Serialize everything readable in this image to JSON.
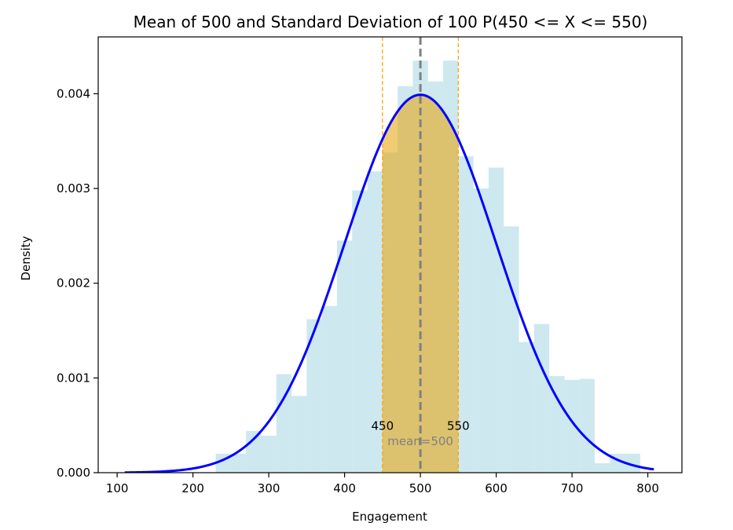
{
  "chart_data": {
    "type": "bar",
    "title": "Mean of 500 and Standard Deviation of 100 P(450 <= X <= 550)",
    "xlabel": "Engagement",
    "ylabel": "Density",
    "xlim": [
      75,
      845
    ],
    "ylim": [
      0,
      0.0046
    ],
    "x_ticks": [
      100,
      200,
      300,
      400,
      500,
      600,
      700,
      800
    ],
    "y_ticks": [
      0.0,
      0.001,
      0.002,
      0.003,
      0.004
    ],
    "y_tick_labels": [
      "0.000",
      "0.001",
      "0.002",
      "0.003",
      "0.004"
    ],
    "histogram": {
      "bin_width": 20,
      "color": "#add8e6",
      "bins": [
        {
          "x0": 110,
          "density": 0.0
        },
        {
          "x0": 130,
          "density": 0.0
        },
        {
          "x0": 150,
          "density": 0.0
        },
        {
          "x0": 170,
          "density": 0.0
        },
        {
          "x0": 190,
          "density": 0.0
        },
        {
          "x0": 210,
          "density": 0.0
        },
        {
          "x0": 230,
          "density": 0.0002
        },
        {
          "x0": 250,
          "density": 0.0002
        },
        {
          "x0": 270,
          "density": 0.00044
        },
        {
          "x0": 290,
          "density": 0.00039
        },
        {
          "x0": 310,
          "density": 0.00104
        },
        {
          "x0": 330,
          "density": 0.00081
        },
        {
          "x0": 350,
          "density": 0.00162
        },
        {
          "x0": 370,
          "density": 0.00176
        },
        {
          "x0": 390,
          "density": 0.00245
        },
        {
          "x0": 410,
          "density": 0.00298
        },
        {
          "x0": 430,
          "density": 0.00318
        },
        {
          "x0": 450,
          "density": 0.00338
        },
        {
          "x0": 470,
          "density": 0.00408
        },
        {
          "x0": 490,
          "density": 0.00435
        },
        {
          "x0": 510,
          "density": 0.00413
        },
        {
          "x0": 530,
          "density": 0.00435
        },
        {
          "x0": 550,
          "density": 0.00334
        },
        {
          "x0": 570,
          "density": 0.003
        },
        {
          "x0": 590,
          "density": 0.00322
        },
        {
          "x0": 610,
          "density": 0.0026
        },
        {
          "x0": 630,
          "density": 0.00138
        },
        {
          "x0": 650,
          "density": 0.00157
        },
        {
          "x0": 670,
          "density": 0.00102
        },
        {
          "x0": 690,
          "density": 0.00098
        },
        {
          "x0": 710,
          "density": 0.00099
        },
        {
          "x0": 730,
          "density": 0.0001
        },
        {
          "x0": 750,
          "density": 0.0002
        },
        {
          "x0": 770,
          "density": 0.0002
        }
      ]
    },
    "pdf_curve": {
      "mean": 500,
      "std": 100,
      "x_range": [
        110,
        808
      ],
      "color": "#0000ff"
    },
    "shaded_region": {
      "from": 450,
      "to": 550,
      "color": "#e6a817"
    },
    "vlines": [
      {
        "x": 450,
        "color": "#ffa500",
        "style": "dashed"
      },
      {
        "x": 550,
        "color": "#ffa500",
        "style": "dashed"
      },
      {
        "x": 500,
        "color": "#808080",
        "style": "dashed"
      }
    ],
    "annotations": [
      {
        "text": "450",
        "x": 450,
        "y": 0.00045,
        "color": "#000000"
      },
      {
        "text": "550",
        "x": 550,
        "y": 0.00045,
        "color": "#000000"
      },
      {
        "text": "mean=500",
        "x": 500,
        "y": 0.00029,
        "color": "#808080"
      }
    ],
    "grid": false,
    "legend": "none"
  }
}
